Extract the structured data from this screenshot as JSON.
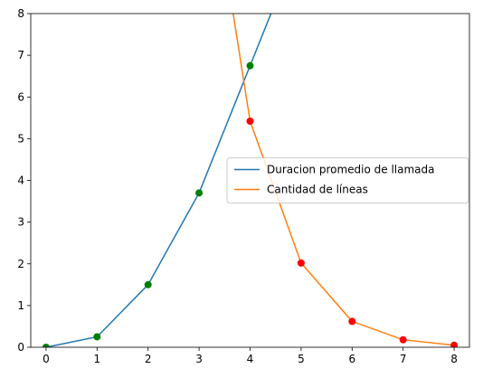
{
  "chart_data": {
    "type": "line",
    "series": [
      {
        "name": "Duracion promedio de llamada",
        "color": "#1f77b4",
        "x": [
          0,
          1,
          2,
          3,
          4,
          5
        ],
        "values": [
          0,
          0.25,
          1.5,
          3.7,
          6.75,
          9.8
        ]
      },
      {
        "name": "Cantidad de líneas",
        "color": "#ff7f0e",
        "x": [
          3,
          4,
          5,
          6,
          7,
          8
        ],
        "values": [
          13.2,
          5.42,
          2.02,
          0.62,
          0.18,
          0.05
        ]
      }
    ],
    "points": [
      {
        "type": "scatter",
        "color": "green",
        "x": [
          0,
          1,
          2,
          3,
          4
        ],
        "values": [
          0,
          0.25,
          1.5,
          3.7,
          6.75
        ]
      },
      {
        "type": "scatter",
        "color": "red",
        "x": [
          4,
          5,
          6,
          7,
          8
        ],
        "values": [
          5.42,
          2.02,
          0.62,
          0.18,
          0.05
        ]
      }
    ],
    "xlim": [
      -0.3,
      8.3
    ],
    "ylim": [
      0,
      8
    ],
    "xticks": [
      0,
      1,
      2,
      3,
      4,
      5,
      6,
      7,
      8
    ],
    "yticks": [
      0,
      1,
      2,
      3,
      4,
      5,
      6,
      7,
      8
    ],
    "legend": "center right"
  }
}
